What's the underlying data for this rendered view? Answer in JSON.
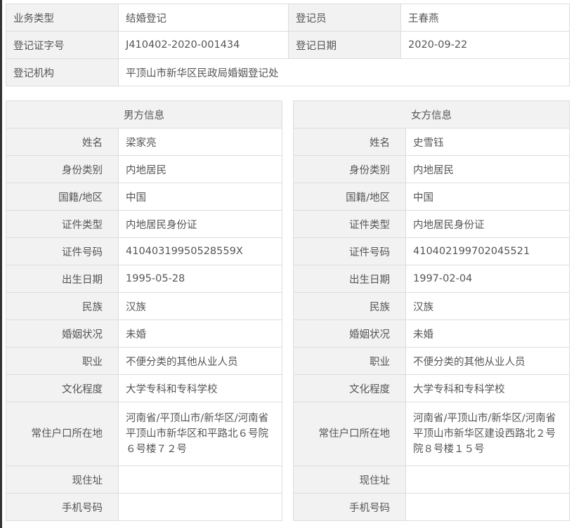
{
  "summary": {
    "rows": [
      [
        {
          "label": "业务类型",
          "value": "结婚登记"
        },
        {
          "label": "登记员",
          "value": "王春燕"
        }
      ],
      [
        {
          "label": "登记证字号",
          "value": "J410402-2020-001434"
        },
        {
          "label": "登记日期",
          "value": "2020-09-22"
        }
      ]
    ],
    "office_label": "登记机构",
    "office_value": "平顶山市新华区民政局婚姻登记处"
  },
  "labels": [
    "姓名",
    "身份类别",
    "国籍/地区",
    "证件类型",
    "证件号码",
    "出生日期",
    "民族",
    "婚姻状况",
    "职业",
    "文化程度",
    "常住户口所在地",
    "现住址",
    "手机号码"
  ],
  "male": {
    "title": "男方信息",
    "values": [
      "梁家亮",
      "内地居民",
      "中国",
      "内地居民身份证",
      "41040319950528559X",
      "1995-05-28",
      "汉族",
      "未婚",
      "不便分类的其他从业人员",
      "大学专科和专科学校",
      "河南省/平顶山市/新华区/河南省平顶山市新华区和平路北６号院６号楼７２号",
      "",
      ""
    ]
  },
  "female": {
    "title": "女方信息",
    "values": [
      "史雪钰",
      "内地居民",
      "中国",
      "内地居民身份证",
      "410402199702045521",
      "1997-02-04",
      "汉族",
      "未婚",
      "不便分类的其他从业人员",
      "大学专科和专科学校",
      "河南省/平顶山市/新华区/河南省平顶山市新华区建设西路北２号院８号楼１５号",
      "",
      ""
    ]
  }
}
